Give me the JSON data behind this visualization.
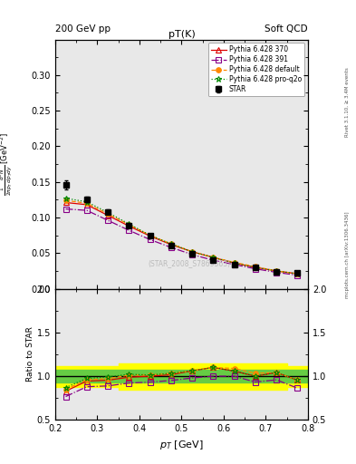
{
  "title": "pT(K)",
  "top_left_label": "200 GeV pp",
  "top_right_label": "Soft QCD",
  "ylabel_main": "$\\frac{1}{2\\pi p_T}\\frac{d^2N}{dp_T dy}$ [GeV$^{-2}$]",
  "ylabel_ratio": "Ratio to STAR",
  "xlabel": "$p_T$ [GeV]",
  "watermark": "(STAR_2008_S7869363)",
  "right_label_top": "Rivet 3.1.10, ≥ 3.4M events",
  "right_label_bot": "mcplots.cern.ch [arXiv:1306.3436]",
  "star_x": [
    0.225,
    0.275,
    0.325,
    0.375,
    0.425,
    0.475,
    0.525,
    0.575,
    0.625,
    0.675,
    0.725,
    0.775
  ],
  "star_y": [
    0.146,
    0.125,
    0.108,
    0.089,
    0.074,
    0.061,
    0.049,
    0.04,
    0.034,
    0.03,
    0.024,
    0.022
  ],
  "star_yerr": [
    0.006,
    0.004,
    0.003,
    0.002,
    0.002,
    0.002,
    0.001,
    0.001,
    0.001,
    0.001,
    0.001,
    0.001
  ],
  "py370_x": [
    0.225,
    0.275,
    0.325,
    0.375,
    0.425,
    0.475,
    0.525,
    0.575,
    0.625,
    0.675,
    0.725,
    0.775
  ],
  "py370_y": [
    0.121,
    0.118,
    0.103,
    0.088,
    0.074,
    0.062,
    0.052,
    0.044,
    0.036,
    0.03,
    0.025,
    0.021
  ],
  "py391_x": [
    0.225,
    0.275,
    0.325,
    0.375,
    0.425,
    0.475,
    0.525,
    0.575,
    0.625,
    0.675,
    0.725,
    0.775
  ],
  "py391_y": [
    0.112,
    0.11,
    0.096,
    0.082,
    0.069,
    0.058,
    0.048,
    0.04,
    0.034,
    0.028,
    0.023,
    0.019
  ],
  "pydef_x": [
    0.225,
    0.275,
    0.325,
    0.375,
    0.425,
    0.475,
    0.525,
    0.575,
    0.625,
    0.675,
    0.725,
    0.775
  ],
  "pydef_y": [
    0.124,
    0.12,
    0.105,
    0.09,
    0.075,
    0.063,
    0.052,
    0.044,
    0.037,
    0.031,
    0.025,
    0.021
  ],
  "pyq2o_x": [
    0.225,
    0.275,
    0.325,
    0.375,
    0.425,
    0.475,
    0.525,
    0.575,
    0.625,
    0.675,
    0.725,
    0.775
  ],
  "pyq2o_y": [
    0.127,
    0.122,
    0.107,
    0.091,
    0.075,
    0.063,
    0.052,
    0.044,
    0.036,
    0.03,
    0.025,
    0.021
  ],
  "color_370": "#dd0000",
  "color_391": "#880088",
  "color_def": "#ff8800",
  "color_q2o": "#008800",
  "color_star": "#000000",
  "ylim_main": [
    0.0,
    0.35
  ],
  "ylim_ratio": [
    0.5,
    2.0
  ],
  "xlim": [
    0.2,
    0.8
  ],
  "bg_color": "#e8e8e8"
}
